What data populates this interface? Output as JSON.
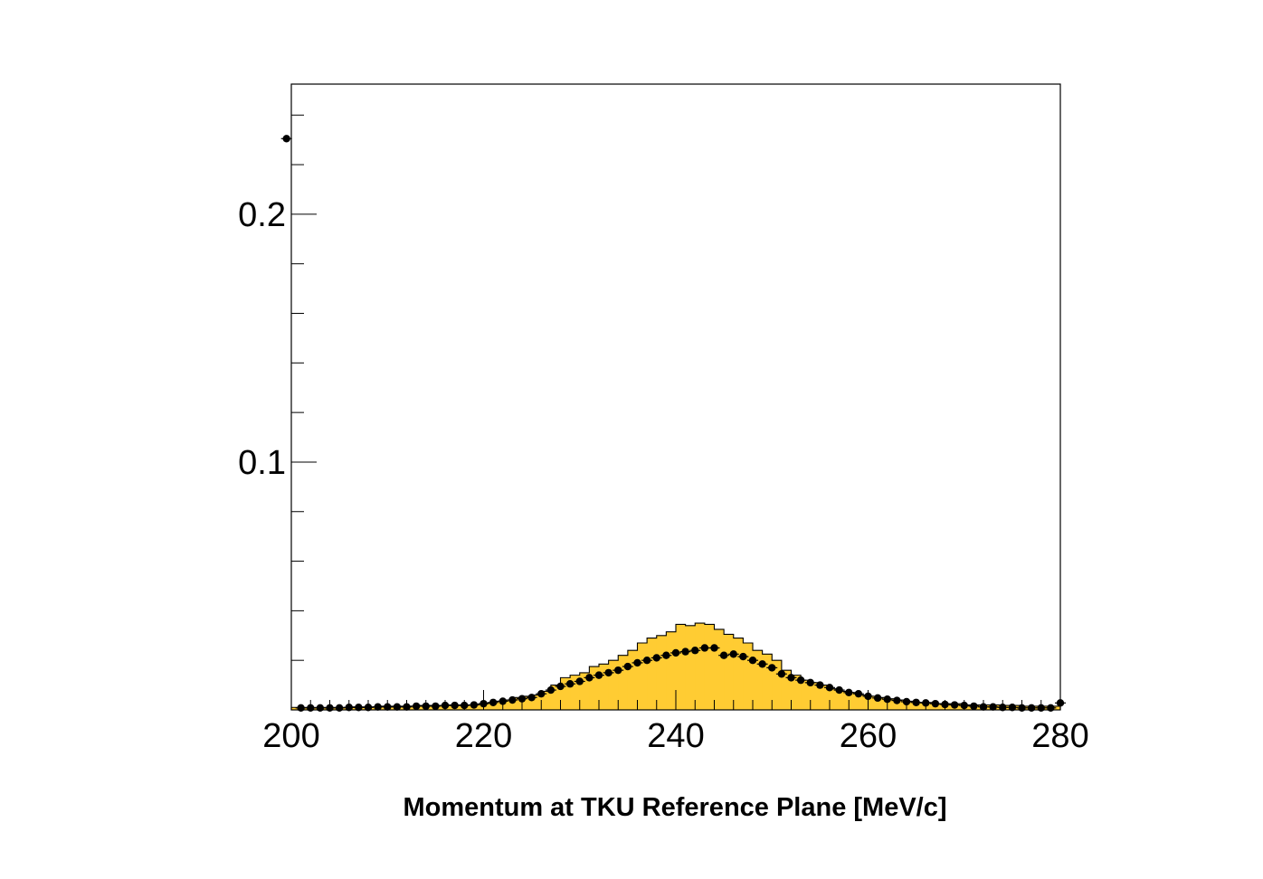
{
  "chart_data": {
    "type": "bar",
    "title": "",
    "xlabel": "Momentum at TKU Reference Plane [MeV/c]",
    "ylabel": "",
    "xlim": [
      200,
      280
    ],
    "ylim": [
      0,
      0.2525
    ],
    "grid": false,
    "x_ticks": [
      200,
      220,
      240,
      260,
      280
    ],
    "x_tick_labels": [
      "200",
      "220",
      "240",
      "260",
      "280"
    ],
    "y_ticks": [
      0.1,
      0.2
    ],
    "y_tick_labels": [
      "0.1",
      "0.2"
    ],
    "bin_edges_start": 200,
    "bin_width": 1,
    "series": [
      {
        "style": "filled-histogram",
        "color": "#ffcc33",
        "values": [
          0.001,
          0.001,
          0.001,
          0.001,
          0.001,
          0.001,
          0.0012,
          0.0012,
          0.0012,
          0.0015,
          0.0015,
          0.0015,
          0.0015,
          0.0018,
          0.0018,
          0.0018,
          0.002,
          0.002,
          0.002,
          0.0022,
          0.0028,
          0.0035,
          0.004,
          0.005,
          0.0055,
          0.006,
          0.0075,
          0.01,
          0.013,
          0.014,
          0.015,
          0.0175,
          0.0185,
          0.02,
          0.022,
          0.024,
          0.027,
          0.029,
          0.03,
          0.0315,
          0.0345,
          0.034,
          0.035,
          0.0345,
          0.0325,
          0.0305,
          0.029,
          0.027,
          0.024,
          0.0225,
          0.02,
          0.016,
          0.014,
          0.012,
          0.011,
          0.01,
          0.0085,
          0.0075,
          0.007,
          0.006,
          0.0055,
          0.005,
          0.0045,
          0.004,
          0.0035,
          0.003,
          0.003,
          0.0025,
          0.0025,
          0.0025,
          0.002,
          0.002,
          0.002,
          0.002,
          0.0018,
          0.0018,
          0.0015,
          0.0015,
          0.0015,
          0.0015
        ]
      },
      {
        "style": "markers",
        "color": "#000000",
        "x": [
          199.5,
          201,
          202,
          203,
          204,
          205,
          206,
          207,
          208,
          209,
          210,
          211,
          212,
          213,
          214,
          215,
          216,
          217,
          218,
          219,
          220,
          221,
          222,
          223,
          224,
          225,
          226,
          227,
          228,
          229,
          230,
          231,
          232,
          233,
          234,
          235,
          236,
          237,
          238,
          239,
          240,
          241,
          242,
          243,
          244,
          245,
          246,
          247,
          248,
          249,
          250,
          251,
          252,
          253,
          254,
          255,
          256,
          257,
          258,
          259,
          260,
          261,
          262,
          263,
          264,
          265,
          266,
          267,
          268,
          269,
          270,
          271,
          272,
          273,
          274,
          275,
          276,
          277,
          278,
          279,
          280
        ],
        "y": [
          0.2305,
          0.0008,
          0.0008,
          0.0008,
          0.0008,
          0.0008,
          0.001,
          0.001,
          0.001,
          0.0012,
          0.0012,
          0.0012,
          0.0012,
          0.0015,
          0.0015,
          0.0015,
          0.0018,
          0.0018,
          0.0018,
          0.002,
          0.0025,
          0.003,
          0.0035,
          0.004,
          0.0045,
          0.005,
          0.0065,
          0.008,
          0.0095,
          0.0105,
          0.0115,
          0.013,
          0.014,
          0.015,
          0.016,
          0.0175,
          0.019,
          0.02,
          0.021,
          0.022,
          0.023,
          0.0235,
          0.024,
          0.025,
          0.025,
          0.022,
          0.0225,
          0.0215,
          0.02,
          0.0185,
          0.017,
          0.0145,
          0.013,
          0.012,
          0.011,
          0.01,
          0.009,
          0.008,
          0.007,
          0.0065,
          0.0055,
          0.0048,
          0.0043,
          0.0038,
          0.0033,
          0.003,
          0.0028,
          0.0025,
          0.0022,
          0.002,
          0.0018,
          0.0015,
          0.0012,
          0.0012,
          0.001,
          0.001,
          0.0008,
          0.0008,
          0.0008,
          0.0008,
          0.0028
        ]
      }
    ]
  }
}
